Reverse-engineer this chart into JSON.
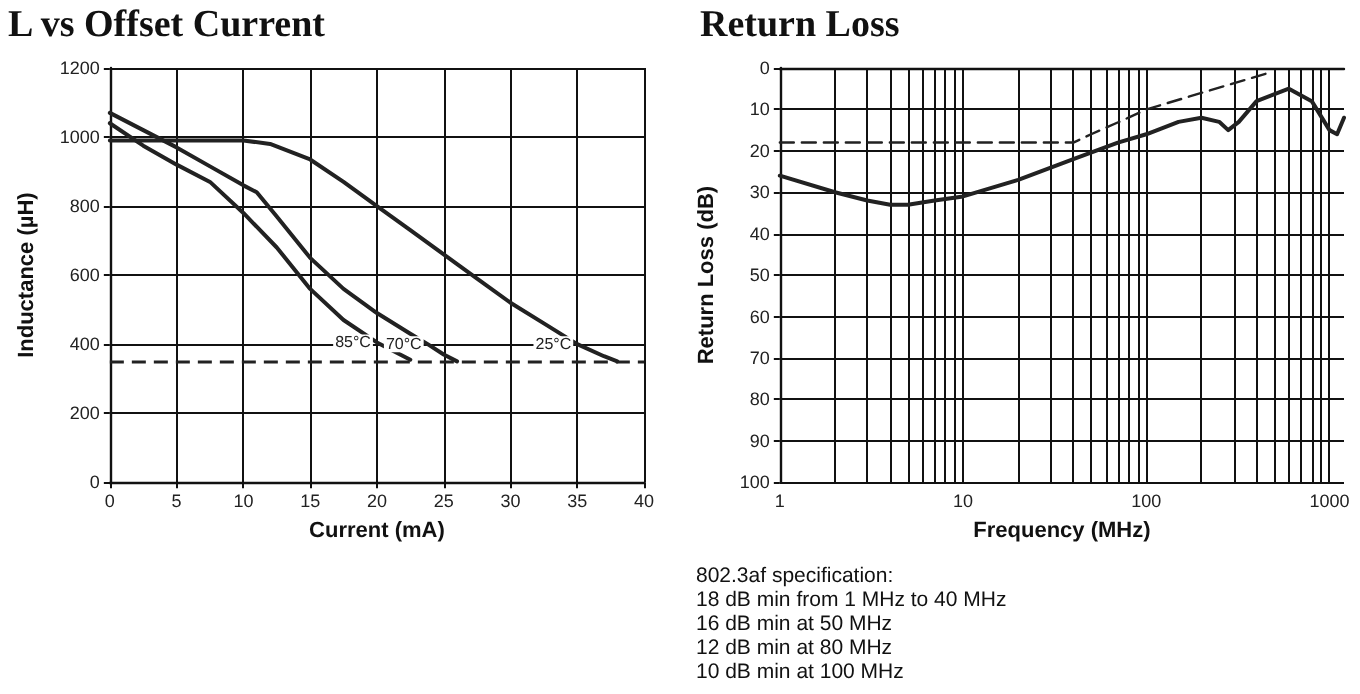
{
  "chart_data": [
    {
      "type": "line",
      "title": "L vs Offset Current",
      "xlabel": "Current (mA)",
      "ylabel": "Inductance (µH)",
      "xlim": [
        0,
        40
      ],
      "xticks": [
        0,
        5,
        10,
        15,
        20,
        25,
        30,
        35,
        40
      ],
      "ylim": [
        0,
        1200
      ],
      "yticks": [
        0,
        200,
        400,
        600,
        800,
        1000,
        1200
      ],
      "grid": true,
      "marker": "none",
      "legend": false,
      "series": [
        {
          "name": "85°C",
          "color": "#222222",
          "x": [
            0,
            2.5,
            5,
            7.5,
            10,
            12.5,
            15,
            17.5,
            20,
            22.5
          ],
          "values": [
            1040,
            975,
            920,
            870,
            780,
            680,
            560,
            470,
            405,
            355
          ]
        },
        {
          "name": "70°C",
          "color": "#222222",
          "x": [
            0,
            2.5,
            5,
            7.5,
            10,
            11,
            12.5,
            15,
            17.5,
            20,
            22.5,
            23.8,
            25,
            26
          ],
          "values": [
            1070,
            1020,
            970,
            915,
            860,
            840,
            770,
            650,
            560,
            490,
            430,
            400,
            370,
            350
          ]
        },
        {
          "name": "25°C",
          "color": "#222222",
          "x": [
            0,
            5,
            10,
            12,
            15,
            17.5,
            20,
            22.5,
            25,
            27.5,
            30,
            32.5,
            35,
            37,
            38
          ],
          "values": [
            990,
            990,
            990,
            980,
            935,
            870,
            800,
            730,
            660,
            590,
            520,
            460,
            400,
            365,
            350
          ]
        }
      ],
      "ref_lines": [
        {
          "axis": "y",
          "value": 350,
          "color": "#222222",
          "line_style": "dashed"
        }
      ]
    },
    {
      "type": "line",
      "title": "Return Loss",
      "xlabel": "Frequency (MHz)",
      "ylabel": "Return Loss (dB)",
      "log": "x",
      "xlim": [
        1,
        1200
      ],
      "xticks": [
        1,
        {
          "value": 2,
          "label": null
        },
        {
          "value": 3,
          "label": null
        },
        {
          "value": 4,
          "label": null
        },
        {
          "value": 5,
          "label": null
        },
        {
          "value": 6,
          "label": null
        },
        {
          "value": 7,
          "label": null
        },
        {
          "value": 8,
          "label": null
        },
        {
          "value": 9,
          "label": null
        },
        10,
        {
          "value": 20,
          "label": null
        },
        {
          "value": 30,
          "label": null
        },
        {
          "value": 40,
          "label": null
        },
        {
          "value": 50,
          "label": null
        },
        {
          "value": 60,
          "label": null
        },
        {
          "value": 70,
          "label": null
        },
        {
          "value": 80,
          "label": null
        },
        {
          "value": 90,
          "label": null
        },
        100,
        {
          "value": 200,
          "label": null
        },
        {
          "value": 300,
          "label": null
        },
        {
          "value": 400,
          "label": null
        },
        {
          "value": 500,
          "label": null
        },
        {
          "value": 600,
          "label": null
        },
        {
          "value": 700,
          "label": null
        },
        {
          "value": 800,
          "label": null
        },
        {
          "value": 900,
          "label": null
        },
        1000
      ],
      "ylim": [
        100,
        0
      ],
      "yticks": [
        0,
        10,
        20,
        30,
        40,
        50,
        60,
        70,
        80,
        90,
        100
      ],
      "grid": true,
      "marker": "none",
      "legend": false,
      "series": [
        {
          "color": "#222222",
          "line_style": "dashed",
          "x": [
            1,
            40,
            50,
            80,
            100,
            480
          ],
          "values": [
            18,
            18,
            16,
            12,
            10,
            1
          ]
        },
        {
          "color": "#222222",
          "line_style": "solid",
          "x": [
            1,
            2,
            3,
            4,
            5,
            7,
            10,
            20,
            40,
            70,
            100,
            150,
            200,
            250,
            280,
            320,
            400,
            600,
            800,
            1000,
            1100,
            1200
          ],
          "values": [
            26,
            30,
            32,
            33,
            33,
            32,
            31,
            27,
            22,
            18,
            16,
            13,
            12,
            13,
            15,
            13,
            8,
            5,
            8,
            15,
            16,
            12
          ]
        }
      ],
      "annotations": [
        "802.3af specification:",
        "18 dB min from 1 MHz to 40 MHz",
        "16 dB min at 50 MHz",
        "12 dB min at 80 MHz",
        "10 dB min at 100 MHz"
      ]
    }
  ]
}
